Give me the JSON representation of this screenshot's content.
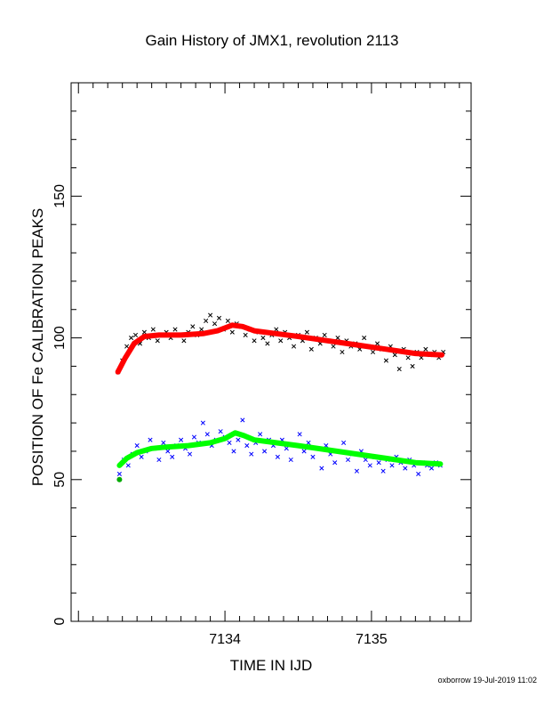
{
  "chart_data": {
    "type": "scatter",
    "title": "Gain History of JMX1, revolution 2113",
    "xlabel": "TIME IN IJD",
    "ylabel": "POSITION OF Fe CALIBRATION PEAKS",
    "xlim": [
      7132.95,
      7135.68
    ],
    "ylim": [
      0,
      190
    ],
    "x_ticks": [
      7134,
      7135
    ],
    "y_ticks": [
      0,
      50,
      100,
      150
    ],
    "grid": false,
    "series": [
      {
        "role": "measurements",
        "color": "#000000",
        "marker": "x",
        "x": [
          7133.27,
          7133.3,
          7133.33,
          7133.36,
          7133.39,
          7133.42,
          7133.45,
          7133.48,
          7133.51,
          7133.54,
          7133.57,
          7133.6,
          7133.63,
          7133.66,
          7133.69,
          7133.72,
          7133.75,
          7133.78,
          7133.81,
          7133.84,
          7133.87,
          7133.9,
          7133.93,
          7133.96,
          7133.99,
          7134.02,
          7134.05,
          7134.08,
          7134.11,
          7134.14,
          7134.17,
          7134.2,
          7134.23,
          7134.26,
          7134.29,
          7134.32,
          7134.35,
          7134.38,
          7134.41,
          7134.44,
          7134.47,
          7134.5,
          7134.53,
          7134.56,
          7134.59,
          7134.62,
          7134.65,
          7134.68,
          7134.71,
          7134.74,
          7134.77,
          7134.8,
          7134.83,
          7134.86,
          7134.89,
          7134.92,
          7134.95,
          7134.98,
          7135.01,
          7135.04,
          7135.07,
          7135.1,
          7135.13,
          7135.16,
          7135.19,
          7135.22,
          7135.25,
          7135.28,
          7135.31,
          7135.34,
          7135.37,
          7135.4,
          7135.43,
          7135.46,
          7135.49
        ],
        "y": [
          88,
          92,
          97,
          100,
          101,
          98,
          102,
          100,
          103,
          99,
          101,
          102,
          100,
          103,
          101,
          99,
          102,
          104,
          101,
          103,
          106,
          108,
          105,
          107,
          103,
          106,
          102,
          105,
          104,
          101,
          103,
          99,
          102,
          100,
          98,
          101,
          103,
          99,
          102,
          100,
          97,
          101,
          99,
          102,
          96,
          100,
          98,
          101,
          99,
          97,
          100,
          95,
          99,
          97,
          98,
          96,
          100,
          97,
          95,
          98,
          96,
          92,
          97,
          94,
          89,
          96,
          93,
          90,
          95,
          93,
          96,
          94,
          95,
          93,
          95
        ]
      },
      {
        "role": "fit",
        "color": "#ff0000",
        "marker": "line",
        "x": [
          7133.27,
          7133.32,
          7133.38,
          7133.45,
          7133.55,
          7133.7,
          7133.85,
          7133.95,
          7134.05,
          7134.12,
          7134.2,
          7134.35,
          7134.5,
          7134.7,
          7134.9,
          7135.1,
          7135.3,
          7135.48
        ],
        "y": [
          88,
          93,
          98,
          100.5,
          101,
          101,
          101.5,
          102.5,
          104.5,
          104,
          102.5,
          101.5,
          100.5,
          99,
          97.5,
          96,
          94.5,
          94
        ]
      },
      {
        "role": "measurements",
        "color": "#0000ff",
        "marker": "x",
        "x": [
          7133.28,
          7133.31,
          7133.34,
          7133.37,
          7133.4,
          7133.43,
          7133.46,
          7133.49,
          7133.52,
          7133.55,
          7133.58,
          7133.61,
          7133.64,
          7133.67,
          7133.7,
          7133.73,
          7133.76,
          7133.79,
          7133.82,
          7133.85,
          7133.88,
          7133.91,
          7133.94,
          7133.97,
          7134.0,
          7134.03,
          7134.06,
          7134.09,
          7134.12,
          7134.15,
          7134.18,
          7134.21,
          7134.24,
          7134.27,
          7134.3,
          7134.33,
          7134.36,
          7134.39,
          7134.42,
          7134.45,
          7134.48,
          7134.51,
          7134.54,
          7134.57,
          7134.6,
          7134.63,
          7134.66,
          7134.69,
          7134.72,
          7134.75,
          7134.78,
          7134.81,
          7134.84,
          7134.87,
          7134.9,
          7134.93,
          7134.96,
          7134.99,
          7135.02,
          7135.05,
          7135.08,
          7135.11,
          7135.14,
          7135.17,
          7135.2,
          7135.23,
          7135.26,
          7135.29,
          7135.32,
          7135.35,
          7135.38,
          7135.41,
          7135.44,
          7135.47
        ],
        "y": [
          52,
          57,
          55,
          59,
          62,
          58,
          60,
          64,
          61,
          57,
          63,
          60,
          58,
          62,
          64,
          61,
          59,
          65,
          63,
          70,
          66,
          62,
          64,
          67,
          65,
          63,
          60,
          64,
          71,
          62,
          59,
          63,
          66,
          60,
          64,
          62,
          58,
          64,
          61,
          57,
          62,
          66,
          60,
          63,
          58,
          61,
          54,
          62,
          59,
          56,
          60,
          63,
          57,
          59,
          53,
          60,
          57,
          55,
          58,
          56,
          53,
          57,
          55,
          58,
          56,
          54,
          57,
          55,
          52,
          56,
          55,
          54,
          56,
          55
        ]
      },
      {
        "role": "fit",
        "color": "#00ff00",
        "marker": "line",
        "x": [
          7133.28,
          7133.33,
          7133.4,
          7133.5,
          7133.6,
          7133.75,
          7133.9,
          7134.0,
          7134.07,
          7134.13,
          7134.2,
          7134.35,
          7134.5,
          7134.7,
          7134.9,
          7135.1,
          7135.3,
          7135.47
        ],
        "y": [
          55,
          57.5,
          59.5,
          61,
          61.5,
          62,
          63,
          64.5,
          66.5,
          65.5,
          64,
          63,
          62,
          60.5,
          59,
          57.5,
          56,
          55.5
        ]
      },
      {
        "role": "first-point",
        "color": "#00aa00",
        "marker": "dot",
        "x": [
          7133.28
        ],
        "y": [
          50
        ]
      }
    ]
  },
  "footer": {
    "text": "oxborrow 19-Jul-2019 11:02"
  }
}
